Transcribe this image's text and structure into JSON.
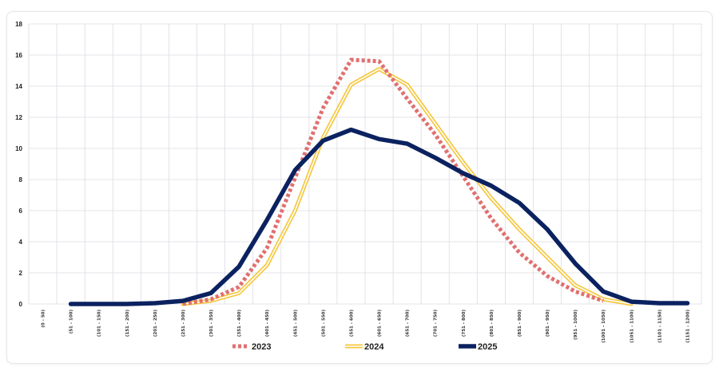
{
  "chart_data": {
    "type": "line",
    "title": "",
    "xlabel": "",
    "ylabel": "",
    "ylim": [
      0,
      18
    ],
    "y_ticks": [
      0,
      2,
      4,
      6,
      8,
      10,
      12,
      14,
      16,
      18
    ],
    "grid": true,
    "legend_position": "bottom-center",
    "categories": [
      "(0 - 50)",
      "(51 - 100)",
      "(101 - 150)",
      "(151 - 200)",
      "(201 - 250)",
      "(251 - 300)",
      "(301 - 350)",
      "(351 - 400)",
      "(401 - 450)",
      "(451 - 500)",
      "(501 - 550)",
      "(551 - 600)",
      "(601 - 650)",
      "(651 - 700)",
      "(701 - 750)",
      "(751 - 800)",
      "(801 - 850)",
      "(851 - 900)",
      "(901 - 950)",
      "(951 - 1000)",
      "(1001 - 1050)",
      "(1051 - 1100)",
      "(1101 - 1150)",
      "(1151 - 1200)"
    ],
    "series": [
      {
        "name": "2023",
        "color": "#e07070",
        "style": "dotted",
        "values": [
          null,
          null,
          null,
          null,
          null,
          0.0,
          0.3,
          1.1,
          3.6,
          8.1,
          12.6,
          15.7,
          15.6,
          13.2,
          10.9,
          8.2,
          5.5,
          3.3,
          1.8,
          0.8,
          0.2,
          null,
          null,
          null
        ]
      },
      {
        "name": "2024",
        "color": "#f5c842",
        "style": "double",
        "values": [
          null,
          null,
          null,
          null,
          null,
          0.0,
          0.2,
          0.7,
          2.5,
          6.0,
          10.7,
          14.1,
          15.1,
          14.1,
          11.6,
          9.1,
          6.8,
          4.8,
          3.0,
          1.2,
          0.3,
          0.0,
          null,
          null
        ]
      },
      {
        "name": "2025",
        "color": "#0b2260",
        "style": "solid",
        "values": [
          null,
          0.0,
          0.0,
          0.0,
          0.05,
          0.2,
          0.7,
          2.4,
          5.4,
          8.6,
          10.5,
          11.2,
          10.6,
          10.3,
          9.4,
          8.4,
          7.6,
          6.5,
          4.8,
          2.6,
          0.8,
          0.15,
          0.05,
          0.05
        ]
      }
    ]
  }
}
